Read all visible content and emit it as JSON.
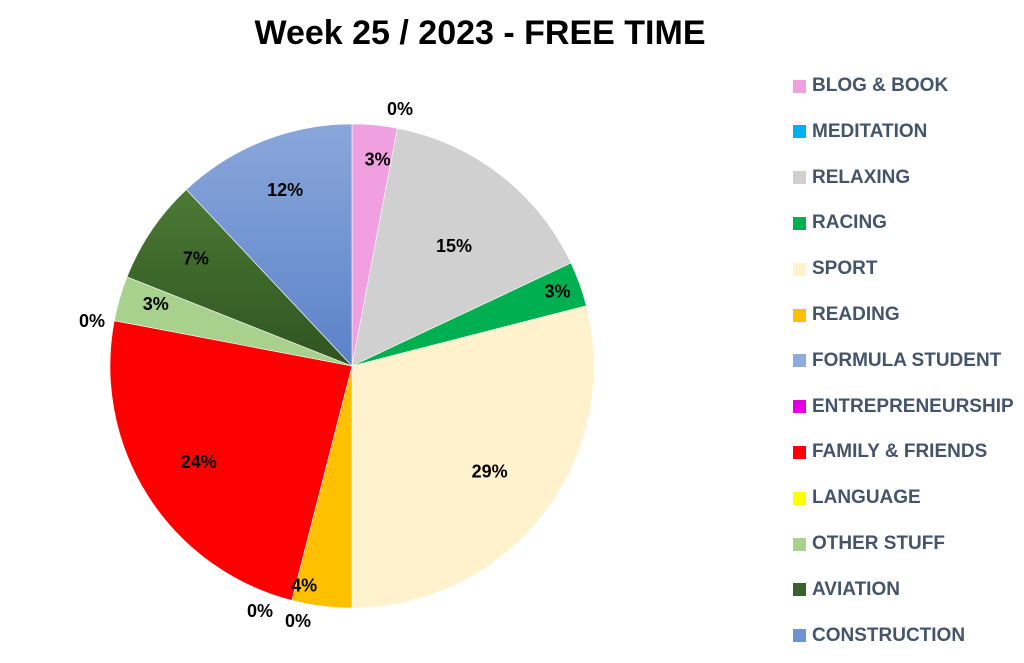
{
  "chart_data": {
    "type": "pie",
    "title": "Week 25 / 2023 - FREE TIME",
    "slices": [
      {
        "name": "BLOG & BOOK",
        "value": 3,
        "label": "3%",
        "color": "#f0a0e0"
      },
      {
        "name": "MEDITATION",
        "value": 0,
        "label": "0%",
        "color": "#00b0f0"
      },
      {
        "name": "RELAXING",
        "value": 15,
        "label": "15%",
        "color": "#d0d0d0"
      },
      {
        "name": "RACING",
        "value": 3,
        "label": "3%",
        "color": "#00b050"
      },
      {
        "name": "SPORT",
        "value": 29,
        "label": "29%",
        "color": "#fff2cc"
      },
      {
        "name": "READING",
        "value": 4,
        "label": "4%",
        "color": "#ffc000"
      },
      {
        "name": "FORMULA STUDENT",
        "value": 0,
        "label": "0%",
        "color": "#8faadc"
      },
      {
        "name": "ENTREPRENEURSHIP",
        "value": 0,
        "label": "0%",
        "color": "#e000e0"
      },
      {
        "name": "FAMILY & FRIENDS",
        "value": 24,
        "label": "24%",
        "color": "#ff0000"
      },
      {
        "name": "LANGUAGE",
        "value": 0,
        "label": "0%",
        "color": "#ffff00"
      },
      {
        "name": "OTHER STUFF",
        "value": 3,
        "label": "3%",
        "color": "#a9d18e"
      },
      {
        "name": "AVIATION",
        "value": 7,
        "label": "7%",
        "color": "#38622b"
      },
      {
        "name": "CONSTRUCTION",
        "value": 12,
        "label": "12%",
        "color": "#6f94d6"
      }
    ],
    "legend_position": "right"
  }
}
